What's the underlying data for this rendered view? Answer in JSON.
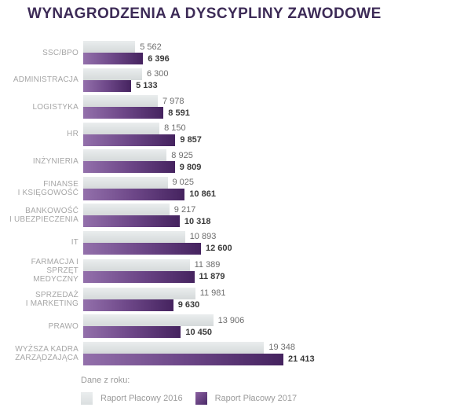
{
  "page": {
    "title": "WYNAGRODZENIA A DYSCYPLINY ZAWODOWE"
  },
  "legend": {
    "title": "Dane z roku:",
    "items": [
      {
        "label": "Raport Płacowy 2016",
        "color": "#dfe3e4"
      },
      {
        "label": "Raport Płacowy 2017",
        "color": "#5c3a77"
      }
    ]
  },
  "colors": {
    "title": "#3d2b57",
    "bar_2016": "#dfe3e4",
    "bar_2017_gradient_start": "#9370ab",
    "bar_2017_gradient_end": "#45235f",
    "category_label": "#a6a6a6",
    "value_2016": "#6d6d6d",
    "value_2017": "#3a3a3a"
  },
  "chart_data": {
    "type": "bar",
    "orientation": "horizontal",
    "title": "WYNAGRODZENIA A DYSCYPLINY ZAWODOWE",
    "xlabel": "",
    "ylabel": "",
    "xlim": [
      0,
      21413
    ],
    "grid": false,
    "legend_position": "bottom",
    "categories": [
      "SSC/BPO",
      "ADMINISTRACJA",
      "LOGISTYKA",
      "HR",
      "INŻYNIERIA",
      "FINANSE\nI KSIĘGOWOŚĆ",
      "BANKOWOŚĆ\nI UBEZPIECZENIA",
      "IT",
      "FARMACJA I SPRZĘT\nMEDYCZNY",
      "SPRZEDAŻ\nI MARKETING",
      "PRAWO",
      "WYŻSZA KADRA\nZARZĄDZAJĄCA"
    ],
    "series": [
      {
        "name": "Raport Płacowy 2016",
        "values": [
          5562,
          6300,
          7978,
          8150,
          8925,
          9025,
          9217,
          10893,
          11389,
          11981,
          13906,
          19348
        ],
        "labels": [
          "5 562",
          "6 300",
          "7 978",
          "8 150",
          "8 925",
          "9 025",
          "9 217",
          "10 893",
          "11 389",
          "11 981",
          "13 906",
          "19 348"
        ]
      },
      {
        "name": "Raport Płacowy 2017",
        "values": [
          6396,
          5133,
          8591,
          9857,
          9809,
          10861,
          10318,
          12600,
          11879,
          9630,
          10450,
          21413
        ],
        "labels": [
          "6 396",
          "5 133",
          "8 591",
          "9 857",
          "9 809",
          "10 861",
          "10 318",
          "12 600",
          "11 879",
          "9 630",
          "10 450",
          "21 413"
        ]
      }
    ]
  }
}
